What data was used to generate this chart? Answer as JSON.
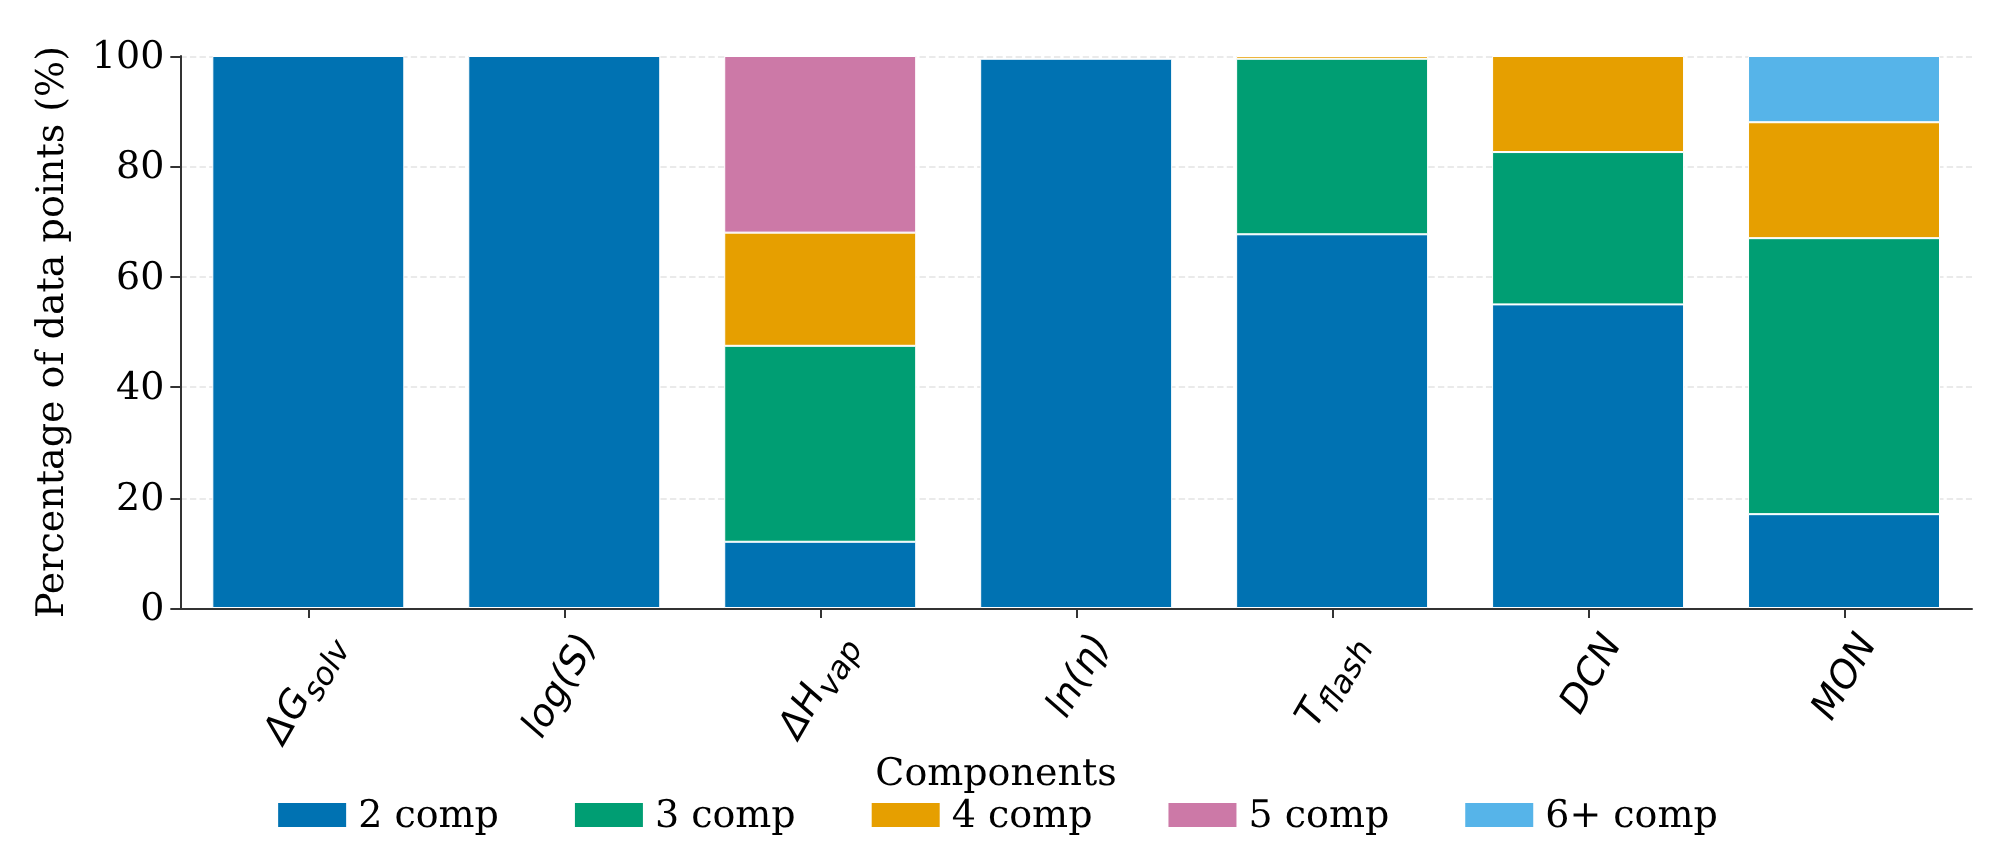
{
  "chart_data": {
    "type": "bar",
    "stacked": true,
    "ylabel": "Percentage of data points (%)",
    "legend_title": "Components",
    "categories": [
      "ΔG$_{solv}$",
      "log(S)",
      "ΔH$_{vap}$",
      "ln(η)",
      "T$_{flash}$",
      "DCN",
      "MON"
    ],
    "series": [
      {
        "name": "2 comp",
        "color": "#0072b2",
        "values": [
          100,
          100,
          12,
          99.5,
          67.7,
          55,
          17
        ]
      },
      {
        "name": "3 comp",
        "color": "#009e73",
        "values": [
          null,
          null,
          35.5,
          null,
          31.8,
          27.6,
          50
        ]
      },
      {
        "name": "4 comp",
        "color": "#e69f00",
        "values": [
          null,
          null,
          20.5,
          null,
          0.5,
          17.4,
          21
        ]
      },
      {
        "name": "5 comp",
        "color": "#cc79a7",
        "values": [
          null,
          null,
          32,
          null,
          null,
          null,
          null
        ]
      },
      {
        "name": "6+ comp",
        "color": "#56b4e9",
        "values": [
          null,
          null,
          null,
          null,
          null,
          null,
          12
        ]
      }
    ],
    "ylim": [
      0,
      100
    ],
    "yticks": [
      0,
      20,
      40,
      60,
      80,
      100
    ],
    "grid": "y",
    "legend": "bottom"
  }
}
